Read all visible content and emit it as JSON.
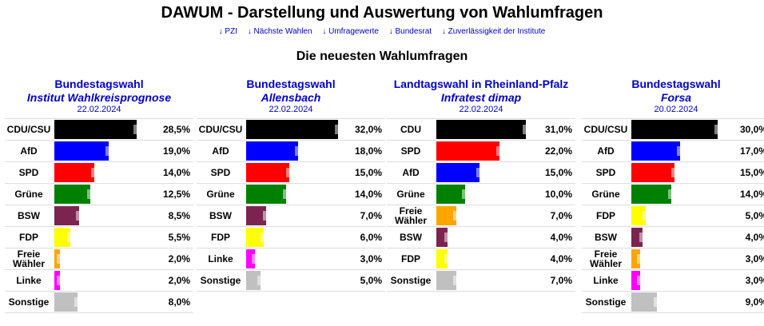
{
  "header": {
    "title": "DAWUM - Darstellung und Auswertung von Wahlumfragen",
    "nav": [
      "PZI",
      "Nächste Wahlen",
      "Umfragewerte",
      "Bundesrat",
      "Zuverlässigkeit der Institute"
    ],
    "section_title": "Die neuesten Wahlumfragen"
  },
  "colors": {
    "CDU/CSU": "#000000",
    "CDU": "#000000",
    "AfD": "#0000ff",
    "SPD": "#ff0000",
    "Grüne": "#008000",
    "BSW": "#7b2450",
    "FDP": "#ffff00",
    "Freie Wähler": "#ffa500",
    "Linke": "#ff00ff",
    "Sonstige": "#c0c0c0",
    "link": "#0000cc"
  },
  "polls": [
    {
      "election": "Bundestagswahl",
      "institute": "Institut Wahlkreisprognose",
      "date": "22.02.2024",
      "rows": [
        {
          "party": "CDU/CSU",
          "label": "CDU/CSU",
          "value": 28.5,
          "pct": "28,5%"
        },
        {
          "party": "AfD",
          "label": "AfD",
          "value": 19.0,
          "pct": "19,0%"
        },
        {
          "party": "SPD",
          "label": "SPD",
          "value": 14.0,
          "pct": "14,0%"
        },
        {
          "party": "Grüne",
          "label": "Grüne",
          "value": 12.5,
          "pct": "12,5%"
        },
        {
          "party": "BSW",
          "label": "BSW",
          "value": 8.5,
          "pct": "8,5%"
        },
        {
          "party": "FDP",
          "label": "FDP",
          "value": 5.5,
          "pct": "5,5%"
        },
        {
          "party": "Freie Wähler",
          "label": "Freie Wähler",
          "value": 2.0,
          "pct": "2,0%"
        },
        {
          "party": "Linke",
          "label": "Linke",
          "value": 2.0,
          "pct": "2,0%"
        },
        {
          "party": "Sonstige",
          "label": "Sonstige",
          "value": 8.0,
          "pct": "8,0%"
        }
      ]
    },
    {
      "election": "Bundestagswahl",
      "institute": "Allensbach",
      "date": "22.02.2024",
      "rows": [
        {
          "party": "CDU/CSU",
          "label": "CDU/CSU",
          "value": 32.0,
          "pct": "32,0%"
        },
        {
          "party": "AfD",
          "label": "AfD",
          "value": 18.0,
          "pct": "18,0%"
        },
        {
          "party": "SPD",
          "label": "SPD",
          "value": 15.0,
          "pct": "15,0%"
        },
        {
          "party": "Grüne",
          "label": "Grüne",
          "value": 14.0,
          "pct": "14,0%"
        },
        {
          "party": "BSW",
          "label": "BSW",
          "value": 7.0,
          "pct": "7,0%"
        },
        {
          "party": "FDP",
          "label": "FDP",
          "value": 6.0,
          "pct": "6,0%"
        },
        {
          "party": "Linke",
          "label": "Linke",
          "value": 3.0,
          "pct": "3,0%"
        },
        {
          "party": "Sonstige",
          "label": "Sonstige",
          "value": 5.0,
          "pct": "5,0%"
        }
      ]
    },
    {
      "election": "Landtagswahl in Rheinland-Pfalz",
      "institute": "Infratest dimap",
      "date": "22.02.2024",
      "rows": [
        {
          "party": "CDU",
          "label": "CDU",
          "value": 31.0,
          "pct": "31,0%"
        },
        {
          "party": "SPD",
          "label": "SPD",
          "value": 22.0,
          "pct": "22,0%"
        },
        {
          "party": "AfD",
          "label": "AfD",
          "value": 15.0,
          "pct": "15,0%"
        },
        {
          "party": "Grüne",
          "label": "Grüne",
          "value": 10.0,
          "pct": "10,0%"
        },
        {
          "party": "Freie Wähler",
          "label": "Freie Wähler",
          "value": 7.0,
          "pct": "7,0%"
        },
        {
          "party": "BSW",
          "label": "BSW",
          "value": 4.0,
          "pct": "4,0%"
        },
        {
          "party": "FDP",
          "label": "FDP",
          "value": 4.0,
          "pct": "4,0%"
        },
        {
          "party": "Sonstige",
          "label": "Sonstige",
          "value": 7.0,
          "pct": "7,0%"
        }
      ]
    },
    {
      "election": "Bundestagswahl",
      "institute": "Forsa",
      "date": "20.02.2024",
      "rows": [
        {
          "party": "CDU/CSU",
          "label": "CDU/CSU",
          "value": 30.0,
          "pct": "30,0%"
        },
        {
          "party": "AfD",
          "label": "AfD",
          "value": 17.0,
          "pct": "17,0%"
        },
        {
          "party": "SPD",
          "label": "SPD",
          "value": 15.0,
          "pct": "15,0%"
        },
        {
          "party": "Grüne",
          "label": "Grüne",
          "value": 14.0,
          "pct": "14,0%"
        },
        {
          "party": "FDP",
          "label": "FDP",
          "value": 5.0,
          "pct": "5,0%"
        },
        {
          "party": "BSW",
          "label": "BSW",
          "value": 4.0,
          "pct": "4,0%"
        },
        {
          "party": "Freie Wähler",
          "label": "Freie Wähler",
          "value": 3.0,
          "pct": "3,0%"
        },
        {
          "party": "Linke",
          "label": "Linke",
          "value": 3.0,
          "pct": "3,0%"
        },
        {
          "party": "Sonstige",
          "label": "Sonstige",
          "value": 9.0,
          "pct": "9,0%"
        }
      ]
    }
  ]
}
